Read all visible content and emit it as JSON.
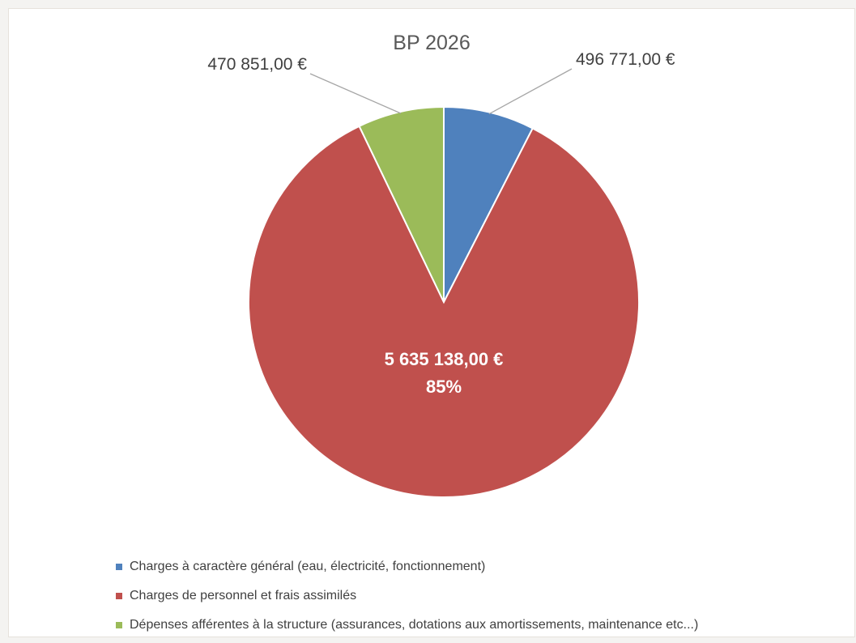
{
  "chart_data": {
    "type": "pie",
    "title": "BP 2026",
    "series": [
      {
        "labels": [
          "Charges à caractère général (eau, électricité, fonctionnement)",
          "Charges de personnel et frais assimilés",
          "Dépenses afférentes à la structure (assurances, dotations aux amortissements, maintenance etc...)"
        ],
        "values": [
          496771.0,
          5635138.0,
          470851.0
        ],
        "data_labels": [
          "496 771,00 €",
          "5 635 138,00 €",
          "470 851,00 €"
        ],
        "percent_labels": [
          "",
          "85%",
          ""
        ],
        "colors": [
          "#4f81bd",
          "#c0504d",
          "#9bbb59"
        ]
      }
    ],
    "legend_position": "bottom",
    "start_angle_deg": 0,
    "direction": "clockwise"
  }
}
